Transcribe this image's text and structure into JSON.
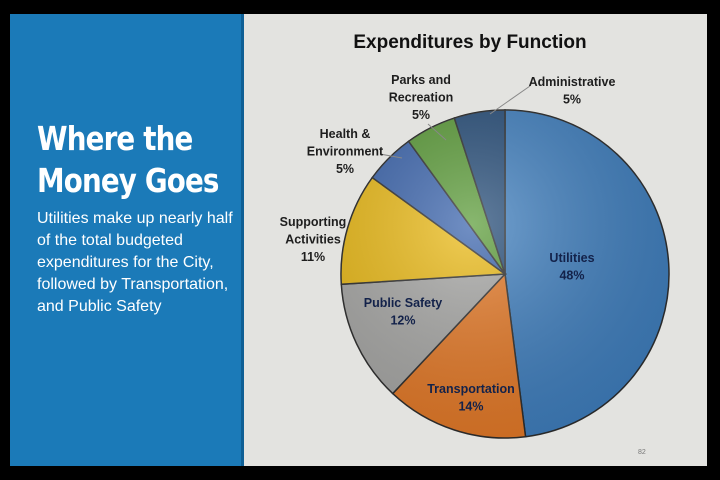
{
  "slide": {
    "headline_line1": "Where the",
    "headline_line2": "Money Goes",
    "body": "Utilities make up nearly half of the total budgeted expenditures for the City, followed by Transportation, and Public Safety",
    "page_number": "82"
  },
  "chart_data": {
    "type": "pie",
    "title": "Expenditures by Function",
    "slices": [
      {
        "label_lines": [
          "Utilities"
        ],
        "value": 48,
        "pct": "48%",
        "color": "#3f7fbf"
      },
      {
        "label_lines": [
          "Transportation"
        ],
        "value": 14,
        "pct": "14%",
        "color": "#e67a27"
      },
      {
        "label_lines": [
          "Public Safety"
        ],
        "value": 12,
        "pct": "12%",
        "color": "#a8a8a6"
      },
      {
        "label_lines": [
          "Supporting",
          "Activities"
        ],
        "value": 11,
        "pct": "11%",
        "color": "#ecbb16"
      },
      {
        "label_lines": [
          "Health &",
          "Environment"
        ],
        "value": 5,
        "pct": "5%",
        "color": "#3a64ad"
      },
      {
        "label_lines": [
          "Parks and",
          "Recreation"
        ],
        "value": 5,
        "pct": "5%",
        "color": "#5a9b37"
      },
      {
        "label_lines": [
          "Administrative"
        ],
        "value": 5,
        "pct": "5%",
        "color": "#254c78"
      }
    ]
  }
}
